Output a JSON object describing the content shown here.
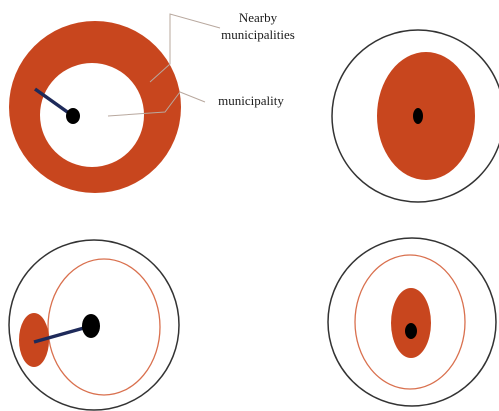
{
  "labels": {
    "nearby_line1": "Nearby",
    "nearby_line2": "municipalities",
    "municipality": "municipality"
  },
  "colors": {
    "fill": "#c8461e",
    "outline": "#333333",
    "inner_ring": "#d9704e",
    "link": "#1e2a5a",
    "dot": "#000000",
    "leader": "#b8a89e"
  }
}
